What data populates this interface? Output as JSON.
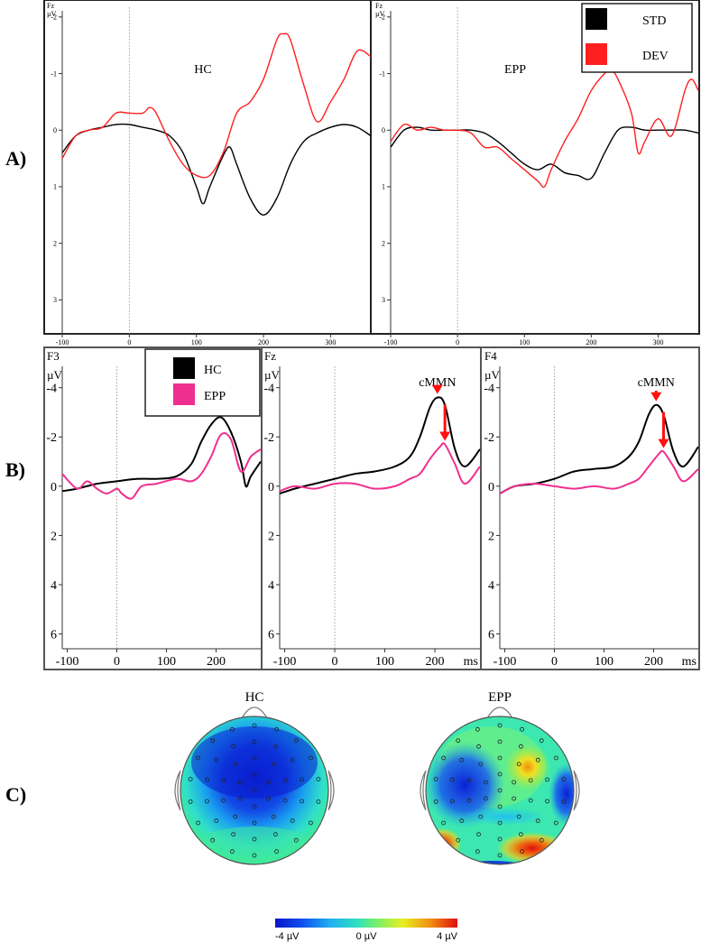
{
  "section_labels": [
    "A)",
    "B)",
    "C)"
  ],
  "legend_a": {
    "items": [
      {
        "label": "STD",
        "color": "#000000"
      },
      {
        "label": "DEV",
        "color": "#ff1f1f"
      }
    ]
  },
  "legend_b": {
    "items": [
      {
        "label": "HC",
        "color": "#000000"
      },
      {
        "label": "EPP",
        "color": "#ef2f8f"
      }
    ]
  },
  "colorbar": {
    "labels": [
      "-4 µV",
      "0 µV",
      "4 µV"
    ],
    "range": [
      -4,
      4
    ]
  },
  "topomaps": [
    {
      "title": "HC"
    },
    {
      "title": "EPP"
    }
  ],
  "chart_data": [
    {
      "type": "line",
      "panel": "A-left",
      "title": "HC",
      "channel": "Fz",
      "unit": "µV",
      "xlim": [
        -100,
        360
      ],
      "ylim": [
        -2.3,
        3.6
      ],
      "y_inverted": true,
      "xticks": [
        -100,
        0,
        100,
        200,
        300
      ],
      "yticks": [
        -2,
        -1,
        0,
        1,
        2,
        3
      ],
      "series": [
        {
          "name": "STD",
          "color": "#000000",
          "x": [
            -100,
            -80,
            -60,
            -40,
            -20,
            0,
            20,
            40,
            60,
            80,
            100,
            110,
            120,
            140,
            150,
            160,
            180,
            200,
            220,
            240,
            260,
            280,
            300,
            320,
            340,
            360
          ],
          "y": [
            0.4,
            0.1,
            0,
            -0.05,
            -0.1,
            -0.1,
            -0.05,
            0,
            0.1,
            0.4,
            1.0,
            1.3,
            1.0,
            0.45,
            0.3,
            0.6,
            1.2,
            1.5,
            1.2,
            0.6,
            0.2,
            0.05,
            -0.05,
            -0.1,
            -0.05,
            0.1
          ]
        },
        {
          "name": "DEV",
          "color": "#ff1f1f",
          "x": [
            -100,
            -80,
            -60,
            -40,
            -20,
            0,
            20,
            30,
            40,
            60,
            80,
            100,
            120,
            140,
            160,
            180,
            200,
            220,
            230,
            240,
            260,
            280,
            300,
            320,
            340,
            360
          ],
          "y": [
            0.5,
            0.1,
            0,
            -0.05,
            -0.3,
            -0.3,
            -0.3,
            -0.4,
            -0.3,
            0.2,
            0.6,
            0.8,
            0.8,
            0.4,
            -0.3,
            -0.5,
            -0.9,
            -1.6,
            -1.7,
            -1.6,
            -0.8,
            -0.15,
            -0.5,
            -0.9,
            -1.4,
            -1.3
          ]
        }
      ]
    },
    {
      "type": "line",
      "panel": "A-right",
      "title": "EPP",
      "channel": "Fz",
      "unit": "µV",
      "xlim": [
        -100,
        360
      ],
      "ylim": [
        -2.3,
        3.6
      ],
      "y_inverted": true,
      "xticks": [
        -100,
        0,
        100,
        200,
        300
      ],
      "yticks": [
        -2,
        -1,
        0,
        1,
        2,
        3
      ],
      "series": [
        {
          "name": "STD",
          "color": "#000000",
          "x": [
            -100,
            -80,
            -60,
            -40,
            -20,
            0,
            20,
            40,
            60,
            80,
            100,
            120,
            140,
            160,
            180,
            200,
            220,
            240,
            260,
            280,
            300,
            320,
            340,
            360
          ],
          "y": [
            0.3,
            0,
            -0.05,
            0,
            0,
            0,
            0,
            0.05,
            0.2,
            0.4,
            0.6,
            0.7,
            0.6,
            0.75,
            0.8,
            0.85,
            0.4,
            0,
            -0.05,
            0,
            0,
            0,
            0,
            0.05
          ]
        },
        {
          "name": "DEV",
          "color": "#ff1f1f",
          "x": [
            -100,
            -80,
            -60,
            -40,
            -20,
            0,
            20,
            40,
            60,
            80,
            100,
            120,
            130,
            140,
            160,
            180,
            200,
            220,
            230,
            240,
            260,
            270,
            280,
            300,
            320,
            340,
            350,
            360
          ],
          "y": [
            0.2,
            -0.1,
            0,
            -0.05,
            0,
            0,
            0.05,
            0.3,
            0.3,
            0.5,
            0.7,
            0.9,
            1.0,
            0.7,
            0.2,
            -0.2,
            -0.7,
            -1.0,
            -1.05,
            -0.9,
            -0.3,
            0.4,
            0.2,
            -0.2,
            0.1,
            -0.7,
            -0.9,
            -0.7
          ]
        }
      ]
    },
    {
      "type": "line",
      "panel": "B-left",
      "channel": "F3",
      "unit": "µV",
      "xlim": [
        -110,
        290
      ],
      "ylim": [
        -5.6,
        6.6
      ],
      "y_inverted": true,
      "xticks": [
        -100,
        0,
        100,
        200
      ],
      "yticks": [
        -4,
        -2,
        0,
        2,
        4,
        6
      ],
      "x_unit_label": "",
      "series": [
        {
          "name": "HC",
          "color": "#000000",
          "x": [
            -110,
            -80,
            -40,
            0,
            40,
            80,
            120,
            150,
            170,
            190,
            210,
            230,
            250,
            260,
            270,
            290
          ],
          "y": [
            0.2,
            0.1,
            -0.1,
            -0.2,
            -0.3,
            -0.3,
            -0.4,
            -0.9,
            -1.8,
            -2.5,
            -2.8,
            -2.2,
            -1.0,
            0,
            -0.4,
            -1.0
          ]
        },
        {
          "name": "EPP",
          "color": "#ef2f8f",
          "x": [
            -110,
            -80,
            -60,
            -40,
            -20,
            0,
            10,
            30,
            50,
            80,
            120,
            150,
            170,
            190,
            210,
            230,
            250,
            270,
            290
          ],
          "y": [
            -0.5,
            0.1,
            -0.2,
            0.1,
            0.3,
            0.1,
            0.3,
            0.5,
            0,
            -0.1,
            -0.3,
            -0.2,
            -0.5,
            -1.2,
            -2.1,
            -1.9,
            -0.6,
            -1.2,
            -1.5
          ]
        }
      ]
    },
    {
      "type": "line",
      "panel": "B-middle",
      "channel": "Fz",
      "unit": "µV",
      "xlim": [
        -110,
        290
      ],
      "ylim": [
        -5.6,
        6.6
      ],
      "y_inverted": true,
      "xticks": [
        -100,
        0,
        100,
        200
      ],
      "yticks": [
        -4,
        -2,
        0,
        2,
        4,
        6
      ],
      "x_unit_label": "ms",
      "annotation": "cMMN",
      "series": [
        {
          "name": "HC",
          "color": "#000000",
          "x": [
            -110,
            -80,
            -40,
            0,
            40,
            80,
            120,
            150,
            170,
            190,
            205,
            220,
            240,
            260,
            290
          ],
          "y": [
            0.3,
            0.1,
            -0.1,
            -0.3,
            -0.5,
            -0.6,
            -0.8,
            -1.2,
            -2.0,
            -3.2,
            -3.6,
            -3.3,
            -1.5,
            -0.8,
            -1.5
          ]
        },
        {
          "name": "EPP",
          "color": "#ef2f8f",
          "x": [
            -110,
            -80,
            -40,
            0,
            40,
            80,
            120,
            150,
            170,
            190,
            210,
            220,
            240,
            260,
            290
          ],
          "y": [
            0.2,
            0,
            0.1,
            -0.1,
            -0.1,
            0.1,
            0,
            -0.3,
            -0.5,
            -1.1,
            -1.6,
            -1.7,
            -0.9,
            -0.1,
            -0.8
          ]
        }
      ]
    },
    {
      "type": "line",
      "panel": "B-right",
      "channel": "F4",
      "unit": "µV",
      "xlim": [
        -110,
        290
      ],
      "ylim": [
        -5.6,
        6.6
      ],
      "y_inverted": true,
      "xticks": [
        -100,
        0,
        100,
        200
      ],
      "yticks": [
        -4,
        -2,
        0,
        2,
        4,
        6
      ],
      "x_unit_label": "ms",
      "annotation": "cMMN",
      "series": [
        {
          "name": "HC",
          "color": "#000000",
          "x": [
            -110,
            -80,
            -40,
            0,
            40,
            80,
            120,
            150,
            170,
            190,
            205,
            220,
            240,
            260,
            290
          ],
          "y": [
            0.3,
            0,
            -0.1,
            -0.3,
            -0.6,
            -0.7,
            -0.8,
            -1.2,
            -1.8,
            -2.9,
            -3.3,
            -2.9,
            -1.4,
            -0.8,
            -1.6
          ]
        },
        {
          "name": "EPP",
          "color": "#ef2f8f",
          "x": [
            -110,
            -80,
            -40,
            0,
            40,
            80,
            120,
            150,
            170,
            190,
            210,
            220,
            240,
            260,
            290
          ],
          "y": [
            0.3,
            0,
            -0.1,
            0,
            0.1,
            0,
            0.1,
            -0.1,
            -0.3,
            -0.8,
            -1.3,
            -1.4,
            -0.8,
            -0.2,
            -0.7
          ]
        }
      ]
    }
  ]
}
